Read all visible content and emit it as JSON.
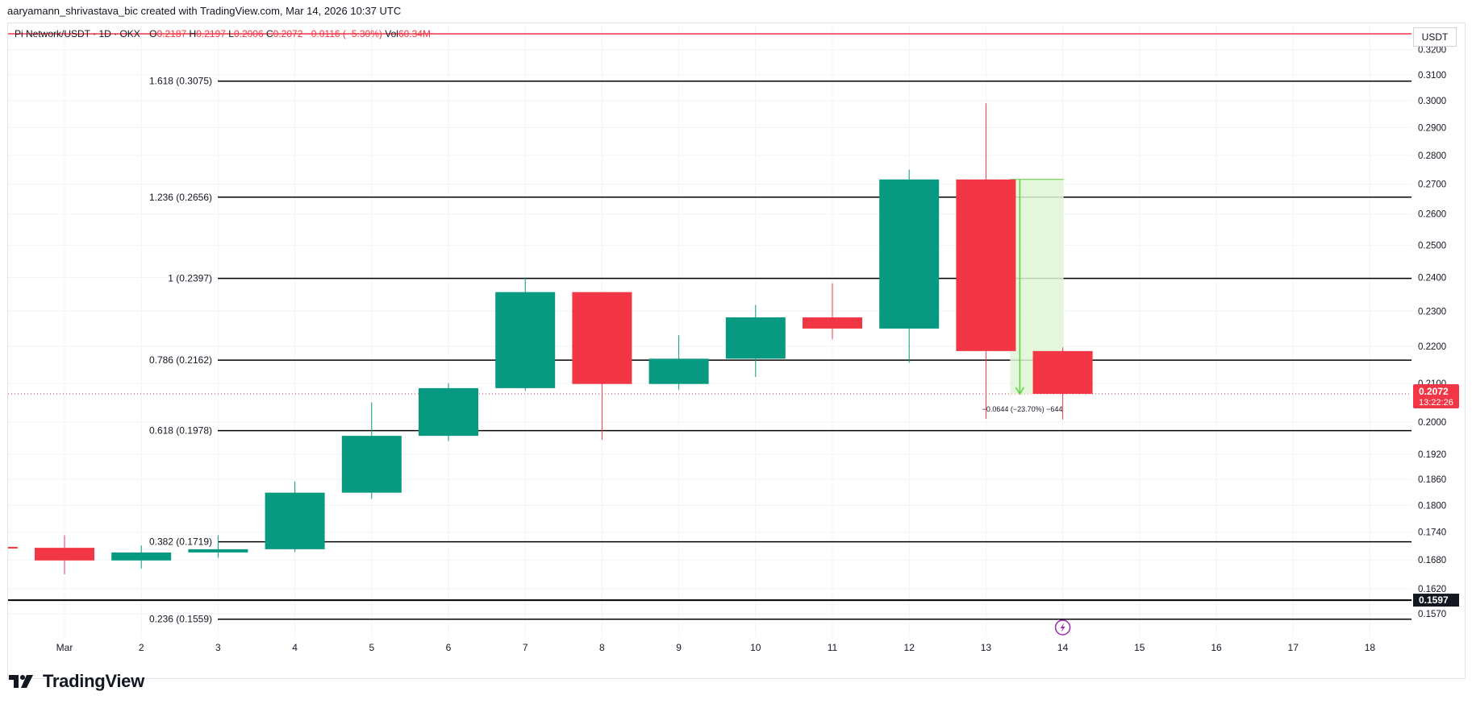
{
  "header": {
    "credit": "aaryamann_shrivastava_bic created with TradingView.com, Mar 14, 2026 10:37 UTC"
  },
  "legend": {
    "symbol": "Pi Network/USDT · 1D · OKX",
    "open_label": "O",
    "open": "0.2187",
    "high_label": "H",
    "high": "0.2197",
    "low_label": "L",
    "low": "0.2006",
    "close_label": "C",
    "close": "0.2072",
    "change": "−0.0116 (−5.30%)",
    "vol_label": "Vol",
    "vol": "60.34M"
  },
  "price_axis": {
    "unit": "USDT",
    "ticks": [
      "0.3200",
      "0.3100",
      "0.3000",
      "0.2900",
      "0.2800",
      "0.2700",
      "0.2600",
      "0.2500",
      "0.2400",
      "0.2300",
      "0.2200",
      "0.2100",
      "0.2000",
      "0.1920",
      "0.1860",
      "0.1800",
      "0.1740",
      "0.1680",
      "0.1620",
      "0.1570"
    ],
    "last_price_label": "0.2072",
    "countdown_label": "13:22:26",
    "marked_level_label": "0.1597"
  },
  "time_axis": {
    "ticks": [
      "Mar",
      "2",
      "3",
      "4",
      "5",
      "6",
      "7",
      "8",
      "9",
      "10",
      "11",
      "12",
      "13",
      "14",
      "15",
      "16",
      "17",
      "18"
    ]
  },
  "fib_levels": [
    {
      "label": "1.618 (0.3075)",
      "price": 0.3075
    },
    {
      "label": "1.236 (0.2656)",
      "price": 0.2656
    },
    {
      "label": "1 (0.2397)",
      "price": 0.2397
    },
    {
      "label": "0.786 (0.2162)",
      "price": 0.2162
    },
    {
      "label": "0.618 (0.1978)",
      "price": 0.1978
    },
    {
      "label": "0.382 (0.1719)",
      "price": 0.1719
    },
    {
      "label": "0.236 (0.1559)",
      "price": 0.1559
    }
  ],
  "measure": {
    "label": "−0.0644 (−23.70%) −644",
    "from_price": 0.2716,
    "to_price": 0.2072
  },
  "chart_data": {
    "type": "candlestick",
    "title": "Pi Network/USDT · 1D · OKX",
    "xlabel": "",
    "ylabel": "",
    "x": [
      "Feb 28",
      "Mar 1",
      "Mar 2",
      "Mar 3",
      "Mar 4",
      "Mar 5",
      "Mar 6",
      "Mar 7",
      "Mar 8",
      "Mar 9",
      "Mar 10",
      "Mar 11",
      "Mar 12",
      "Mar 13",
      "Mar 14"
    ],
    "open": [
      0.1708,
      0.1706,
      0.1679,
      0.1696,
      0.1703,
      0.1829,
      0.1965,
      0.2087,
      0.2356,
      0.2098,
      0.2166,
      0.2282,
      0.225,
      0.2716,
      0.2187
    ],
    "high": [
      0.1712,
      0.1733,
      0.1711,
      0.1733,
      0.1855,
      0.205,
      0.21,
      0.24,
      0.2356,
      0.2231,
      0.2318,
      0.2383,
      0.275,
      0.299,
      0.2197
    ],
    "low": [
      0.1695,
      0.165,
      0.1662,
      0.1685,
      0.1697,
      0.1815,
      0.1952,
      0.208,
      0.1955,
      0.2083,
      0.2117,
      0.222,
      0.2155,
      0.2008,
      0.2006
    ],
    "close": [
      0.1706,
      0.1679,
      0.1696,
      0.1703,
      0.1829,
      0.1965,
      0.2087,
      0.2356,
      0.2098,
      0.2166,
      0.2282,
      0.225,
      0.2716,
      0.2187,
      0.2072
    ],
    "y_scale": "log",
    "ylim": [
      0.154,
      0.325
    ],
    "grid": true,
    "colors": {
      "up": "#089981",
      "down": "#f23645",
      "fib_line": "#000000",
      "measure_fill": "#dff5d5",
      "measure_line": "#5bd13a",
      "grid": "#f0f3fa"
    }
  }
}
